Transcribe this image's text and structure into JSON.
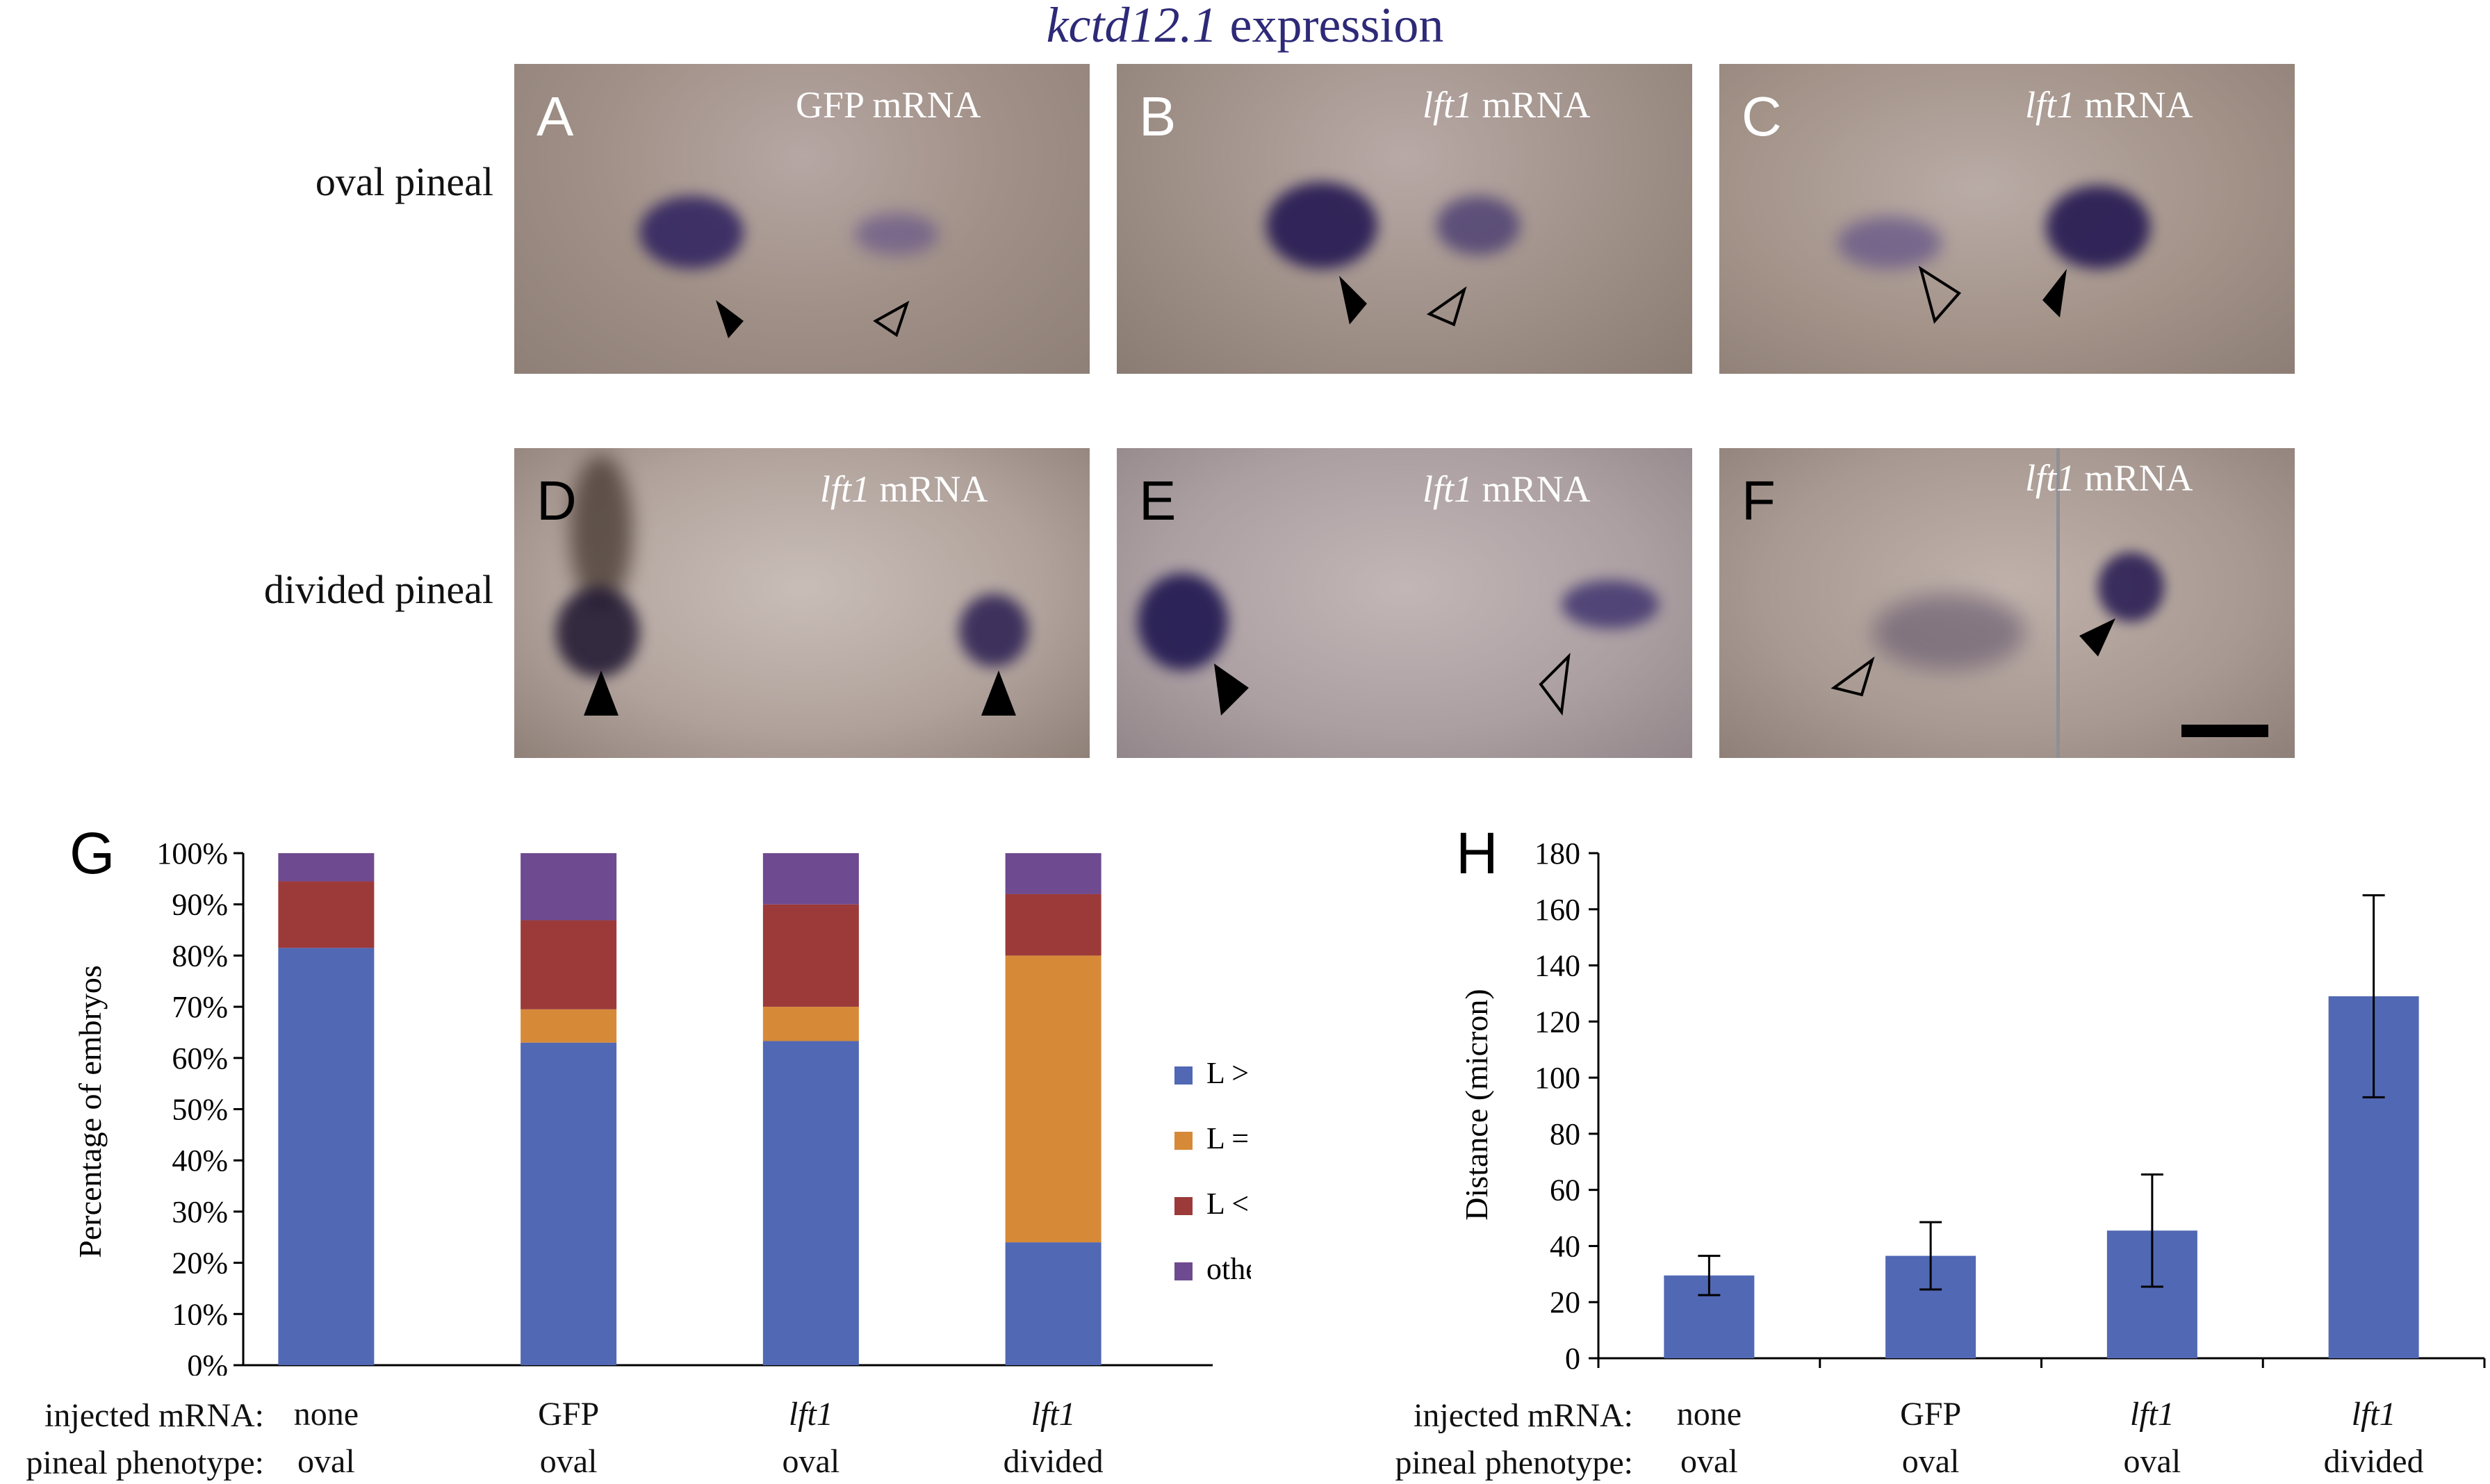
{
  "title": {
    "gene": "kctd12.1",
    "rest": " expression"
  },
  "row_labels": {
    "top": "oval pineal",
    "bottom": "divided pineal"
  },
  "photos": [
    {
      "letter": "A",
      "mrna_gene": "",
      "mrna_rest": "GFP mRNA"
    },
    {
      "letter": "B",
      "mrna_gene": "lft1",
      "mrna_rest": " mRNA"
    },
    {
      "letter": "C",
      "mrna_gene": "lft1",
      "mrna_rest": " mRNA"
    },
    {
      "letter": "D",
      "mrna_gene": "lft1",
      "mrna_rest": " mRNA"
    },
    {
      "letter": "E",
      "mrna_gene": "lft1",
      "mrna_rest": " mRNA"
    },
    {
      "letter": "F",
      "mrna_gene": "lft1",
      "mrna_rest": " mRNA"
    }
  ],
  "colors": {
    "title": "#2e2a78",
    "lgr": "#5168b4",
    "leqr": "#d68a38",
    "lltr": "#9c3a3a",
    "other": "#6e4a90",
    "h_bar": "#5168b4"
  },
  "row_axis_labels": {
    "injected": "injected mRNA:",
    "phenotype": "pineal phenotype:"
  },
  "groups": [
    {
      "mrna": "none",
      "phenotype": "oval",
      "italic": false
    },
    {
      "mrna": "GFP",
      "phenotype": "oval",
      "italic": false
    },
    {
      "mrna": "lft1",
      "phenotype": "oval",
      "italic": true
    },
    {
      "mrna": "lft1",
      "phenotype": "divided",
      "italic": true
    }
  ],
  "chart_data": [
    {
      "panel": "G",
      "type": "bar",
      "stacked": true,
      "ylabel": "Percentage of embryos",
      "ylim": [
        0,
        100
      ],
      "yticks": [
        "0%",
        "10%",
        "20%",
        "30%",
        "40%",
        "50%",
        "60%",
        "70%",
        "80%",
        "90%",
        "100%"
      ],
      "categories": [
        "none oval",
        "GFP oval",
        "lft1 oval",
        "lft1 divided"
      ],
      "series": [
        {
          "name": "L > R",
          "values": [
            81.5,
            63,
            63.3,
            24
          ]
        },
        {
          "name": "L = R",
          "values": [
            0,
            6.5,
            6.7,
            56
          ]
        },
        {
          "name": "L < R",
          "values": [
            13,
            17.4,
            20,
            12
          ]
        },
        {
          "name": "other",
          "values": [
            5.5,
            13.1,
            10,
            8
          ]
        }
      ],
      "legend": "right"
    },
    {
      "panel": "H",
      "type": "bar",
      "ylabel": "Distance (micron)",
      "ylim": [
        0,
        180
      ],
      "yticks": [
        "0",
        "20",
        "40",
        "60",
        "80",
        "100",
        "120",
        "140",
        "160",
        "180"
      ],
      "categories": [
        "none oval",
        "GFP oval",
        "lft1 oval",
        "lft1 divided"
      ],
      "values": [
        29.5,
        36.5,
        45.5,
        129
      ],
      "error": [
        7,
        12,
        20,
        36
      ]
    }
  ]
}
